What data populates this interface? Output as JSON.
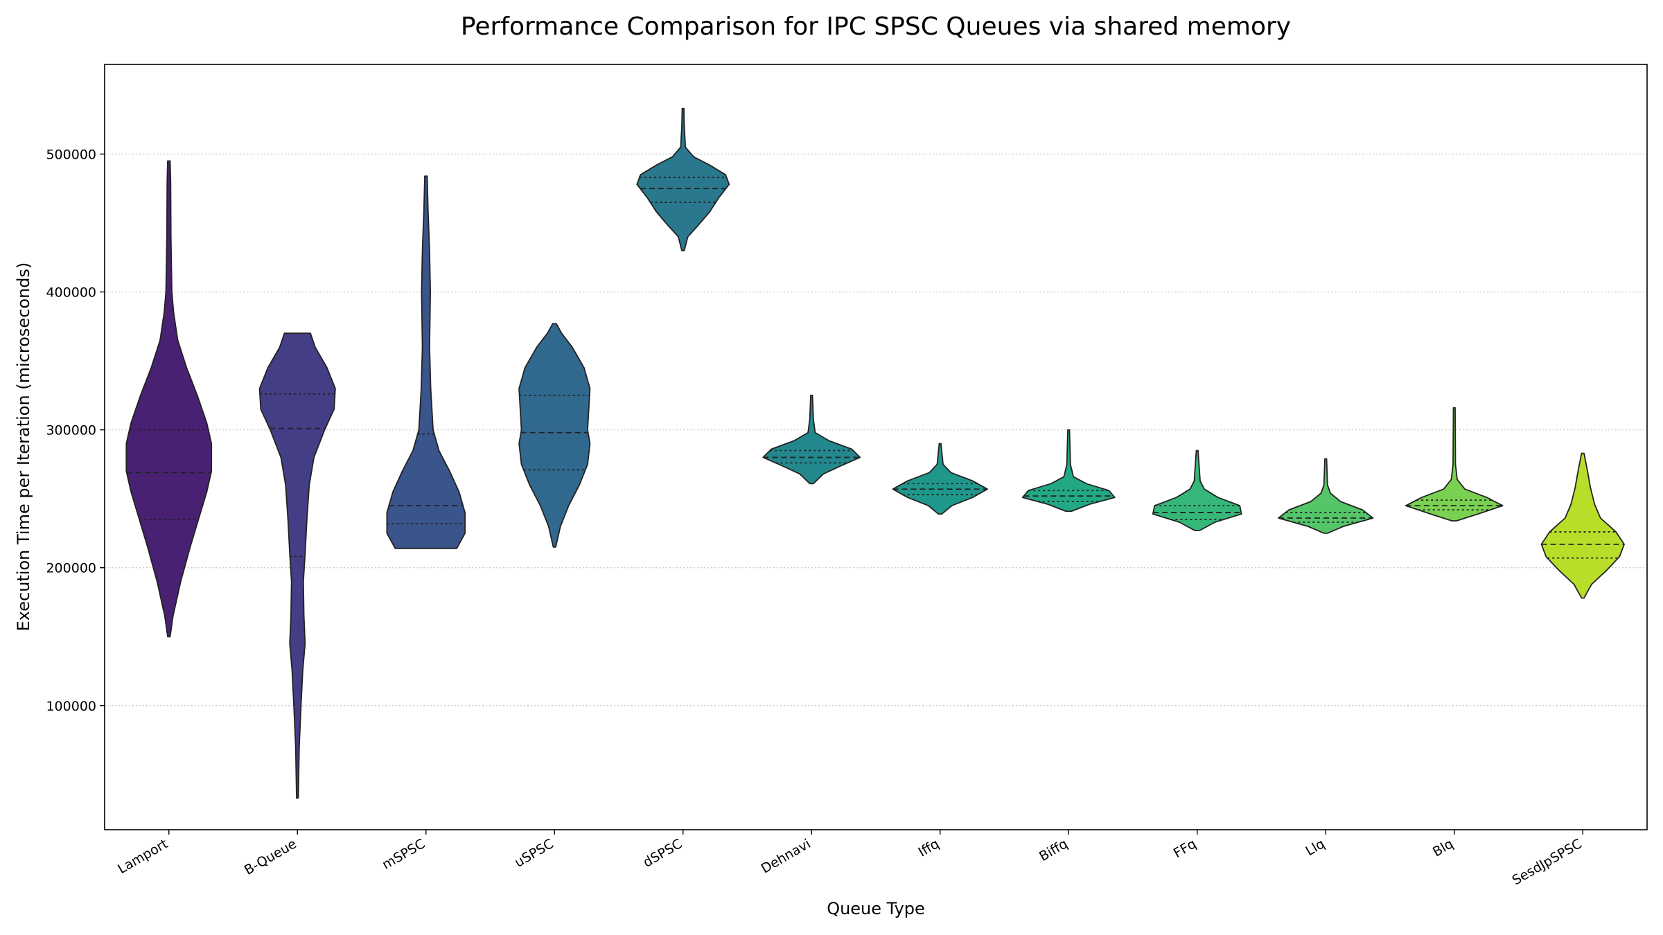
{
  "chart_data": {
    "type": "violin",
    "title": "Performance Comparison for IPC SPSC Queues via shared memory",
    "xlabel": "Queue Type",
    "ylabel": "Execution Time per Iteration (microseconds)",
    "ylim": [
      10000,
      565000
    ],
    "yticks": [
      100000,
      200000,
      300000,
      400000,
      500000
    ],
    "ytick_labels": [
      "100000",
      "200000",
      "300000",
      "400000",
      "500000"
    ],
    "grid": "y-dotted",
    "categories": [
      "Lamport",
      "B-Queue",
      "mSPSC",
      "uSPSC",
      "dSPSC",
      "Dehnavi",
      "Iffq",
      "Biffq",
      "FFq",
      "Llq",
      "Blq",
      "SesdJpSPSC"
    ],
    "colors": [
      "#482173",
      "#433e85",
      "#3a548c",
      "#31688e",
      "#2a788e",
      "#23888e",
      "#1f988b",
      "#22a884",
      "#35b779",
      "#54c568",
      "#7ad151",
      "#b8de29"
    ],
    "violins": [
      {
        "name": "Lamport",
        "min": 150000,
        "max": 495000,
        "q1": 235000,
        "median": 269000,
        "q3": 300000,
        "profile": [
          [
            150000,
            0.02
          ],
          [
            165000,
            0.07
          ],
          [
            190000,
            0.2
          ],
          [
            215000,
            0.36
          ],
          [
            235000,
            0.5
          ],
          [
            255000,
            0.64
          ],
          [
            270000,
            0.72
          ],
          [
            290000,
            0.72
          ],
          [
            305000,
            0.64
          ],
          [
            325000,
            0.48
          ],
          [
            345000,
            0.3
          ],
          [
            365000,
            0.15
          ],
          [
            385000,
            0.08
          ],
          [
            400000,
            0.05
          ],
          [
            440000,
            0.035
          ],
          [
            480000,
            0.03
          ],
          [
            495000,
            0.02
          ]
        ]
      },
      {
        "name": "B-Queue",
        "min": 33000,
        "max": 370000,
        "q1": 208000,
        "median": 301000,
        "q3": 326000,
        "profile": [
          [
            33000,
            0.015
          ],
          [
            70000,
            0.03
          ],
          [
            100000,
            0.06
          ],
          [
            125000,
            0.09
          ],
          [
            145000,
            0.13
          ],
          [
            165000,
            0.11
          ],
          [
            190000,
            0.1
          ],
          [
            210000,
            0.13
          ],
          [
            235000,
            0.16
          ],
          [
            260000,
            0.2
          ],
          [
            280000,
            0.28
          ],
          [
            300000,
            0.46
          ],
          [
            315000,
            0.62
          ],
          [
            330000,
            0.64
          ],
          [
            345000,
            0.5
          ],
          [
            360000,
            0.3
          ],
          [
            370000,
            0.22
          ]
        ]
      },
      {
        "name": "mSPSC",
        "min": 214000,
        "max": 484000,
        "q1": 232000,
        "median": 245000,
        "q3": 297000,
        "profile": [
          [
            214000,
            0.52
          ],
          [
            225000,
            0.66
          ],
          [
            240000,
            0.66
          ],
          [
            255000,
            0.56
          ],
          [
            270000,
            0.4
          ],
          [
            285000,
            0.22
          ],
          [
            300000,
            0.12
          ],
          [
            330000,
            0.08
          ],
          [
            360000,
            0.06
          ],
          [
            400000,
            0.075
          ],
          [
            430000,
            0.06
          ],
          [
            460000,
            0.035
          ],
          [
            484000,
            0.02
          ]
        ]
      },
      {
        "name": "uSPSC",
        "min": 215000,
        "max": 377000,
        "q1": 271000,
        "median": 298000,
        "q3": 325000,
        "profile": [
          [
            215000,
            0.02
          ],
          [
            230000,
            0.1
          ],
          [
            245000,
            0.24
          ],
          [
            260000,
            0.42
          ],
          [
            275000,
            0.56
          ],
          [
            290000,
            0.6
          ],
          [
            300000,
            0.56
          ],
          [
            315000,
            0.58
          ],
          [
            330000,
            0.6
          ],
          [
            345000,
            0.5
          ],
          [
            360000,
            0.3
          ],
          [
            370000,
            0.12
          ],
          [
            377000,
            0.03
          ]
        ]
      },
      {
        "name": "dSPSC",
        "min": 430000,
        "max": 533000,
        "q1": 465000,
        "median": 475000,
        "q3": 483000,
        "profile": [
          [
            430000,
            0.02
          ],
          [
            440000,
            0.08
          ],
          [
            448000,
            0.25
          ],
          [
            458000,
            0.45
          ],
          [
            468000,
            0.6
          ],
          [
            478000,
            0.78
          ],
          [
            485000,
            0.72
          ],
          [
            492000,
            0.45
          ],
          [
            498000,
            0.18
          ],
          [
            505000,
            0.04
          ],
          [
            520000,
            0.02
          ],
          [
            533000,
            0.015
          ]
        ]
      },
      {
        "name": "Dehnavi",
        "min": 261000,
        "max": 325000,
        "q1": 276000,
        "median": 280000,
        "q3": 285000,
        "profile": [
          [
            261000,
            0.03
          ],
          [
            268000,
            0.2
          ],
          [
            274000,
            0.5
          ],
          [
            280000,
            0.82
          ],
          [
            286000,
            0.68
          ],
          [
            292000,
            0.3
          ],
          [
            298000,
            0.06
          ],
          [
            308000,
            0.03
          ],
          [
            325000,
            0.015
          ]
        ]
      },
      {
        "name": "Iffq",
        "min": 239000,
        "max": 290000,
        "q1": 253000,
        "median": 257000,
        "q3": 261000,
        "profile": [
          [
            239000,
            0.03
          ],
          [
            245000,
            0.2
          ],
          [
            251000,
            0.55
          ],
          [
            257000,
            0.8
          ],
          [
            263000,
            0.55
          ],
          [
            269000,
            0.18
          ],
          [
            275000,
            0.05
          ],
          [
            290000,
            0.015
          ]
        ]
      },
      {
        "name": "Biffq",
        "min": 241000,
        "max": 300000,
        "q1": 248000,
        "median": 252000,
        "q3": 256000,
        "profile": [
          [
            241000,
            0.05
          ],
          [
            246000,
            0.35
          ],
          [
            251000,
            0.78
          ],
          [
            256000,
            0.68
          ],
          [
            261000,
            0.3
          ],
          [
            266000,
            0.08
          ],
          [
            275000,
            0.03
          ],
          [
            300000,
            0.015
          ]
        ]
      },
      {
        "name": "FFq",
        "min": 227000,
        "max": 285000,
        "q1": 235000,
        "median": 240000,
        "q3": 245000,
        "profile": [
          [
            227000,
            0.04
          ],
          [
            233000,
            0.3
          ],
          [
            239000,
            0.75
          ],
          [
            245000,
            0.72
          ],
          [
            251000,
            0.35
          ],
          [
            257000,
            0.12
          ],
          [
            263000,
            0.05
          ],
          [
            285000,
            0.015
          ]
        ]
      },
      {
        "name": "Llq",
        "min": 225000,
        "max": 279000,
        "q1": 233000,
        "median": 236000,
        "q3": 240000,
        "profile": [
          [
            225000,
            0.03
          ],
          [
            230000,
            0.3
          ],
          [
            236000,
            0.8
          ],
          [
            242000,
            0.62
          ],
          [
            248000,
            0.25
          ],
          [
            254000,
            0.08
          ],
          [
            260000,
            0.03
          ],
          [
            279000,
            0.015
          ]
        ]
      },
      {
        "name": "Blq",
        "min": 234000,
        "max": 316000,
        "q1": 242000,
        "median": 245000,
        "q3": 249000,
        "profile": [
          [
            234000,
            0.04
          ],
          [
            239000,
            0.4
          ],
          [
            245000,
            0.82
          ],
          [
            251000,
            0.55
          ],
          [
            257000,
            0.18
          ],
          [
            264000,
            0.05
          ],
          [
            275000,
            0.02
          ],
          [
            316000,
            0.015
          ]
        ]
      },
      {
        "name": "SesdJpSPSC",
        "min": 178000,
        "max": 283000,
        "q1": 207000,
        "median": 217000,
        "q3": 226000,
        "profile": [
          [
            178000,
            0.02
          ],
          [
            188000,
            0.15
          ],
          [
            198000,
            0.4
          ],
          [
            208000,
            0.62
          ],
          [
            217000,
            0.7
          ],
          [
            226000,
            0.56
          ],
          [
            236000,
            0.3
          ],
          [
            246000,
            0.2
          ],
          [
            258000,
            0.13
          ],
          [
            270000,
            0.08
          ],
          [
            283000,
            0.02
          ]
        ]
      }
    ]
  }
}
